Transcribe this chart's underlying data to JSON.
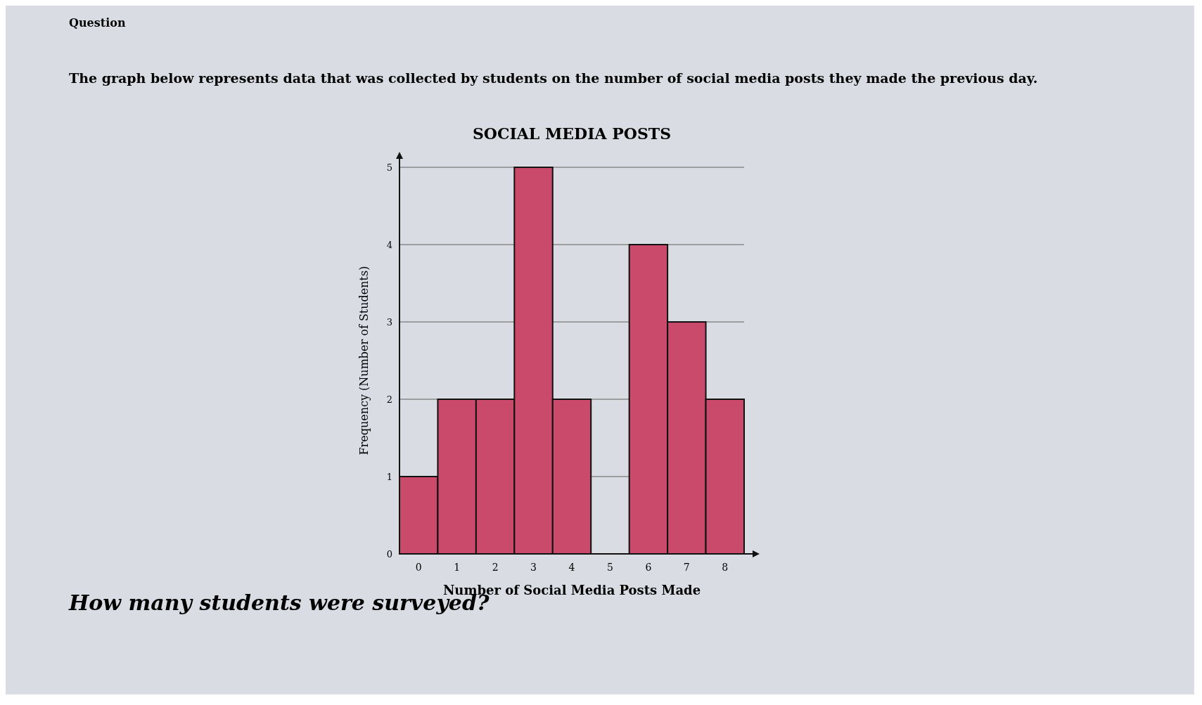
{
  "chart_data": {
    "type": "bar",
    "title": "SOCIAL MEDIA POSTS",
    "xlabel": "Number of Social Media Posts Made",
    "ylabel": "Frequency (Number of Students)",
    "categories": [
      "0",
      "1",
      "2",
      "3",
      "4",
      "5",
      "6",
      "7",
      "8"
    ],
    "values": [
      1,
      2,
      2,
      5,
      2,
      0,
      4,
      3,
      2
    ],
    "color": "#c94a6a",
    "ylim": [
      0,
      5
    ],
    "yticks": [
      0,
      1,
      2,
      3,
      4,
      5
    ],
    "grid": "y",
    "annotations": [
      "Question",
      "The graph below represents data that was collected by students on the number of social media posts they made the previous day.",
      "How many students were surveyed?"
    ]
  }
}
